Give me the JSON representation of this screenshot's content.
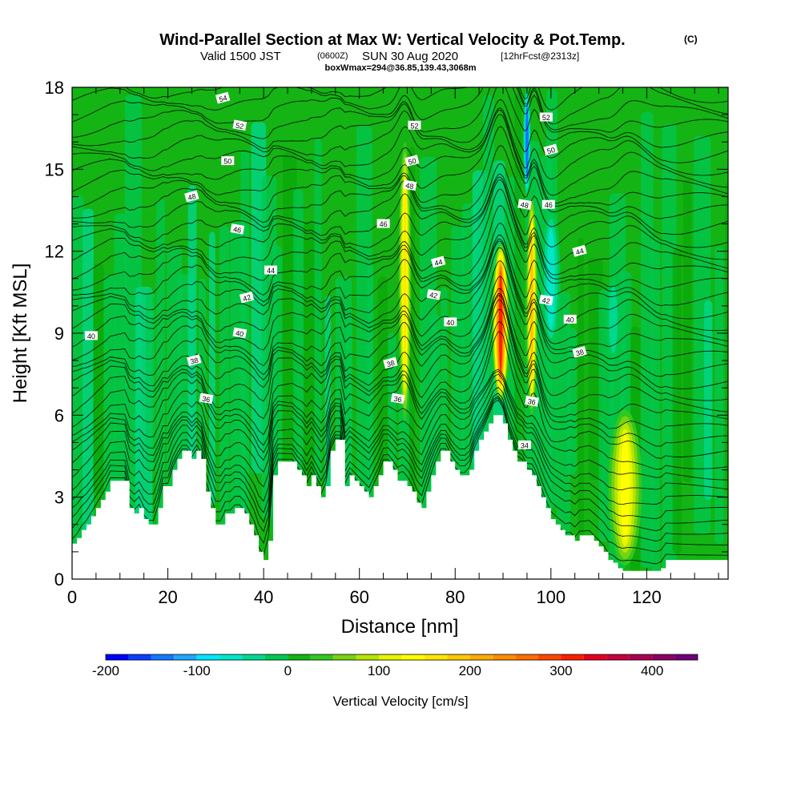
{
  "chart_data": {
    "type": "heatmap",
    "title": "Wind-Parallel Section at Max W: Vertical Velocity & Pot.Temp.",
    "title_mark": "(C)",
    "subtitle_valid": "Valid 1500 JST",
    "subtitle_utc": "(0600Z)",
    "subtitle_date": "SUN 30 Aug 2020",
    "subtitle_fcst": "[12hrFcst@2313z]",
    "subtitle_box": "boxWmax=294@36.85,139.43,3068m",
    "xlabel": "Distance [nm]",
    "ylabel": "Height [Kft MSL]",
    "xlim": [
      0,
      137
    ],
    "ylim": [
      0,
      18
    ],
    "x_ticks": [
      "0",
      "20",
      "40",
      "60",
      "80",
      "100",
      "120"
    ],
    "x_tick_values": [
      0,
      20,
      40,
      60,
      80,
      100,
      120
    ],
    "y_ticks": [
      "0",
      "3",
      "6",
      "9",
      "12",
      "15",
      "18"
    ],
    "y_tick_values": [
      0,
      3,
      6,
      9,
      12,
      15,
      18
    ],
    "colorbar": {
      "label": "Vertical Velocity [cm/s]",
      "min": -200,
      "max": 450,
      "step": 25,
      "tick_labels": [
        "-200",
        "-100",
        "0",
        "100",
        "200",
        "300",
        "400"
      ],
      "tick_values": [
        -200,
        -100,
        0,
        100,
        200,
        300,
        400
      ],
      "colors": [
        "#0000ff",
        "#0a3cff",
        "#1478ff",
        "#1ea8ff",
        "#00e6ff",
        "#00e6c8",
        "#00d890",
        "#00c850",
        "#14b414",
        "#32c81e",
        "#78d214",
        "#b4e600",
        "#e6f500",
        "#ffff00",
        "#ffe600",
        "#ffc800",
        "#ffaa00",
        "#ff8c00",
        "#ff6e00",
        "#ff4600",
        "#ff1e00",
        "#e6001e",
        "#c8003c",
        "#aa0050",
        "#8c0064",
        "#6e0078"
      ]
    },
    "background_colors": {
      "base": "#14b414",
      "light_band": "#00c850",
      "light_band2": "#00d890",
      "dark_band": "#0aa80a",
      "terrain": "#ffffff"
    },
    "terrain_height_kft": [
      [
        0,
        1.3
      ],
      [
        1,
        1.5
      ],
      [
        2,
        1.8
      ],
      [
        3,
        2.0
      ],
      [
        4,
        2.3
      ],
      [
        5,
        2.6
      ],
      [
        6,
        2.9
      ],
      [
        7,
        3.2
      ],
      [
        8,
        3.6
      ],
      [
        10,
        3.6
      ],
      [
        11,
        3.6
      ],
      [
        12,
        2.6
      ],
      [
        13,
        2.4
      ],
      [
        14,
        2.6
      ],
      [
        15,
        2.2
      ],
      [
        16,
        2.0
      ],
      [
        17,
        2.0
      ],
      [
        18,
        2.6
      ],
      [
        19,
        3.4
      ],
      [
        20,
        3.4
      ],
      [
        21,
        4.0
      ],
      [
        22,
        4.4
      ],
      [
        23,
        4.7
      ],
      [
        24,
        4.7
      ],
      [
        25,
        4.4
      ],
      [
        26,
        4.7
      ],
      [
        27,
        4.4
      ],
      [
        28,
        3.2
      ],
      [
        29,
        2.6
      ],
      [
        30,
        2.0
      ],
      [
        31,
        2.0
      ],
      [
        32,
        2.4
      ],
      [
        33,
        2.4
      ],
      [
        34,
        2.6
      ],
      [
        35,
        2.6
      ],
      [
        36,
        2.4
      ],
      [
        37,
        2.0
      ],
      [
        38,
        1.6
      ],
      [
        39,
        1.0
      ],
      [
        40,
        0.7
      ],
      [
        41,
        1.4
      ],
      [
        42,
        3.8
      ],
      [
        43,
        4.3
      ],
      [
        44,
        4.3
      ],
      [
        45,
        4.3
      ],
      [
        46,
        4.3
      ],
      [
        47,
        4.0
      ],
      [
        48,
        3.8
      ],
      [
        49,
        3.4
      ],
      [
        50,
        3.8
      ],
      [
        51,
        3.4
      ],
      [
        52,
        3.0
      ],
      [
        53,
        3.4
      ],
      [
        54,
        4.7
      ],
      [
        55,
        5.1
      ],
      [
        56,
        5.1
      ],
      [
        57,
        3.4
      ],
      [
        58,
        3.8
      ],
      [
        59,
        3.6
      ],
      [
        60,
        3.4
      ],
      [
        61,
        3.2
      ],
      [
        62,
        3.0
      ],
      [
        63,
        3.4
      ],
      [
        64,
        3.8
      ],
      [
        65,
        4.3
      ],
      [
        66,
        4.3
      ],
      [
        67,
        4.0
      ],
      [
        68,
        3.6
      ],
      [
        69,
        3.6
      ],
      [
        70,
        3.4
      ],
      [
        71,
        3.2
      ],
      [
        72,
        2.8
      ],
      [
        73,
        2.6
      ],
      [
        74,
        3.2
      ],
      [
        75,
        3.8
      ],
      [
        76,
        4.3
      ],
      [
        77,
        4.7
      ],
      [
        78,
        4.7
      ],
      [
        79,
        4.3
      ],
      [
        80,
        4.0
      ],
      [
        81,
        3.8
      ],
      [
        82,
        3.8
      ],
      [
        83,
        4.0
      ],
      [
        84,
        4.7
      ],
      [
        85,
        5.1
      ],
      [
        86,
        5.4
      ],
      [
        87,
        5.7
      ],
      [
        88,
        6.0
      ],
      [
        89,
        6.0
      ],
      [
        90,
        5.7
      ],
      [
        91,
        5.1
      ],
      [
        92,
        4.7
      ],
      [
        93,
        4.3
      ],
      [
        94,
        4.3
      ],
      [
        95,
        4.0
      ],
      [
        96,
        3.8
      ],
      [
        97,
        3.4
      ],
      [
        98,
        3.0
      ],
      [
        99,
        2.6
      ],
      [
        100,
        2.2
      ],
      [
        101,
        2.0
      ],
      [
        102,
        1.8
      ],
      [
        103,
        1.6
      ],
      [
        104,
        1.6
      ],
      [
        105,
        1.4
      ],
      [
        106,
        1.6
      ],
      [
        107,
        1.6
      ],
      [
        108,
        1.6
      ],
      [
        109,
        1.4
      ],
      [
        110,
        1.2
      ],
      [
        111,
        1.0
      ],
      [
        112,
        0.7
      ],
      [
        113,
        0.6
      ],
      [
        114,
        0.4
      ],
      [
        115,
        0.3
      ],
      [
        116,
        0.3
      ],
      [
        118,
        0.3
      ],
      [
        122,
        0.3
      ],
      [
        123,
        0.4
      ],
      [
        124,
        0.7
      ],
      [
        130,
        0.7
      ],
      [
        137,
        0.7
      ]
    ],
    "vertical_velocity_features": [
      {
        "name": "updraft-70nm",
        "x": 69.5,
        "x_width": 1.3,
        "y_bottom": 5.8,
        "y_top": 16.0,
        "peak_cms": 150
      },
      {
        "name": "updraft-90nm",
        "x": 89.5,
        "x_width": 1.8,
        "y_bottom": 6.5,
        "y_top": 12.3,
        "peak_cms": 294
      },
      {
        "name": "updraft-96nm",
        "x": 96.0,
        "x_width": 1.2,
        "y_bottom": 6.0,
        "y_top": 14.0,
        "peak_cms": 175
      },
      {
        "name": "updraft-116nm",
        "x": 115.5,
        "x_width": 3.5,
        "y_bottom": 0.5,
        "y_top": 6.2,
        "peak_cms": 120
      },
      {
        "name": "downdraft-95nm",
        "x": 95.0,
        "x_width": 0.8,
        "y_bottom": 14.0,
        "y_top": 18.0,
        "peak_cms": -150
      },
      {
        "name": "downdraft-100nm",
        "x": 100.0,
        "x_width": 2.0,
        "y_bottom": 8.5,
        "y_top": 13.5,
        "peak_cms": -80
      },
      {
        "name": "downdraft-113nm",
        "x": 113.0,
        "x_width": 1.5,
        "y_bottom": 8.0,
        "y_top": 11.0,
        "peak_cms": -50
      }
    ],
    "theta_contour_labels": [
      {
        "text": "54",
        "x": 31.5,
        "y": 17.6
      },
      {
        "text": "52",
        "x": 35.0,
        "y": 16.6
      },
      {
        "text": "50",
        "x": 32.5,
        "y": 15.3
      },
      {
        "text": "48",
        "x": 25.0,
        "y": 14.0
      },
      {
        "text": "46",
        "x": 34.5,
        "y": 12.8
      },
      {
        "text": "44",
        "x": 41.5,
        "y": 11.3
      },
      {
        "text": "42",
        "x": 36.5,
        "y": 10.3
      },
      {
        "text": "40",
        "x": 35.0,
        "y": 9.0
      },
      {
        "text": "40",
        "x": 4.0,
        "y": 8.9
      },
      {
        "text": "38",
        "x": 25.5,
        "y": 8.0
      },
      {
        "text": "36",
        "x": 28.0,
        "y": 6.6
      },
      {
        "text": "52",
        "x": 71.5,
        "y": 16.6
      },
      {
        "text": "50",
        "x": 71.0,
        "y": 15.3
      },
      {
        "text": "48",
        "x": 70.5,
        "y": 14.4
      },
      {
        "text": "46",
        "x": 65.0,
        "y": 13.0
      },
      {
        "text": "44",
        "x": 76.5,
        "y": 11.6
      },
      {
        "text": "42",
        "x": 75.5,
        "y": 10.4
      },
      {
        "text": "40",
        "x": 79.0,
        "y": 9.4
      },
      {
        "text": "38",
        "x": 66.5,
        "y": 7.9
      },
      {
        "text": "36",
        "x": 68.0,
        "y": 6.6
      },
      {
        "text": "52",
        "x": 99.0,
        "y": 16.9
      },
      {
        "text": "50",
        "x": 100.0,
        "y": 15.7
      },
      {
        "text": "48",
        "x": 94.5,
        "y": 13.7
      },
      {
        "text": "46",
        "x": 99.5,
        "y": 13.7
      },
      {
        "text": "44",
        "x": 106.0,
        "y": 12.0
      },
      {
        "text": "42",
        "x": 99.0,
        "y": 10.2
      },
      {
        "text": "40",
        "x": 104.0,
        "y": 9.5
      },
      {
        "text": "38",
        "x": 106.0,
        "y": 8.3
      },
      {
        "text": "36",
        "x": 96.0,
        "y": 6.5
      },
      {
        "text": "34",
        "x": 94.5,
        "y": 4.9
      }
    ]
  }
}
